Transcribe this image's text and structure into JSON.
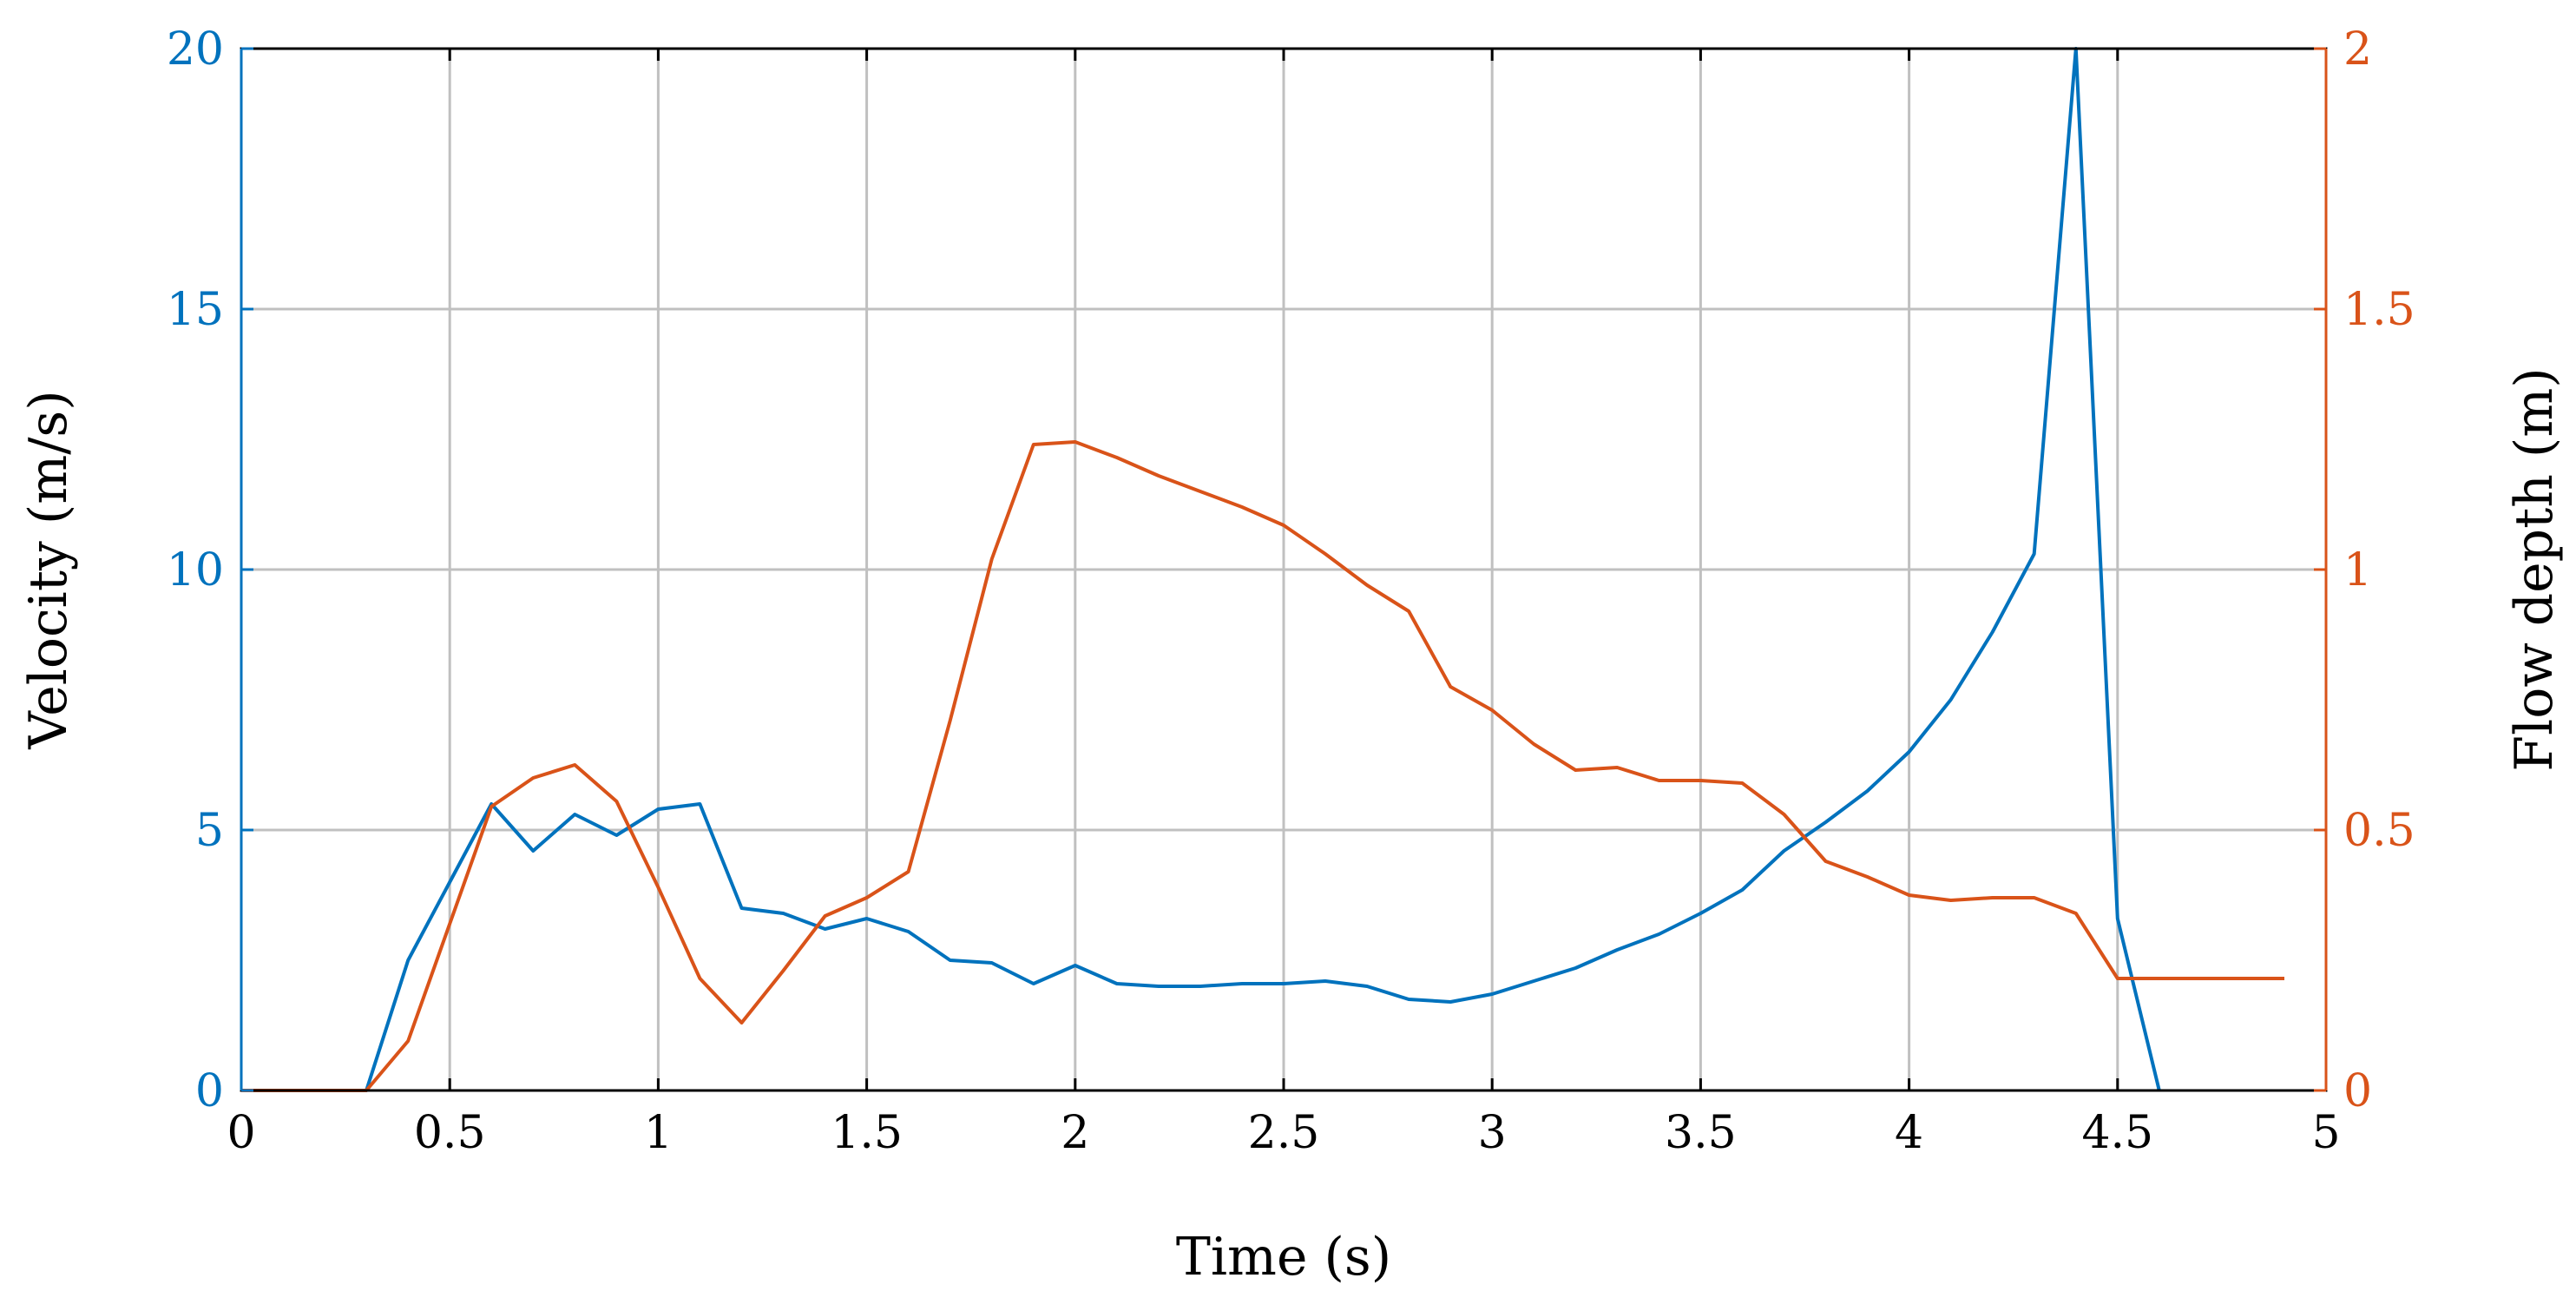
{
  "chart_data": {
    "type": "line",
    "xlabel": "Time (s)",
    "ylabel_left": "Velocity (m/s)",
    "ylabel_right": "Flow depth (m)",
    "xlim": [
      0,
      5
    ],
    "ylim_left": [
      0,
      20
    ],
    "ylim_right": [
      0,
      2
    ],
    "x_ticks": [
      "0",
      "0.5",
      "1",
      "1.5",
      "2",
      "2.5",
      "3",
      "3.5",
      "4",
      "4.5",
      "5"
    ],
    "y_left_ticks": [
      "0",
      "5",
      "10",
      "15",
      "20"
    ],
    "y_right_ticks": [
      "0",
      "0.5",
      "1",
      "1.5",
      "2"
    ],
    "grid": true,
    "colors": {
      "left_axis": "#0072BD",
      "right_axis": "#D95319",
      "axes": "#000000",
      "grid": "#c0c0c0"
    },
    "series": [
      {
        "axis": "left",
        "color": "#0072BD",
        "x": [
          0,
          0.1,
          0.2,
          0.3,
          0.4,
          0.5,
          0.6,
          0.7,
          0.8,
          0.9,
          1.0,
          1.1,
          1.2,
          1.3,
          1.4,
          1.5,
          1.6,
          1.7,
          1.8,
          1.9,
          2.0,
          2.1,
          2.2,
          2.3,
          2.4,
          2.5,
          2.6,
          2.7,
          2.8,
          2.9,
          3.0,
          3.1,
          3.2,
          3.3,
          3.4,
          3.5,
          3.6,
          3.7,
          3.8,
          3.9,
          4.0,
          4.1,
          4.2,
          4.3,
          4.4,
          4.5,
          4.6
        ],
        "values": [
          0,
          0,
          0,
          0,
          2.5,
          4.0,
          5.5,
          4.6,
          5.3,
          4.9,
          5.4,
          5.5,
          3.5,
          3.4,
          3.1,
          3.3,
          3.05,
          2.5,
          2.45,
          2.05,
          2.4,
          2.05,
          2.0,
          2.0,
          2.05,
          2.05,
          2.1,
          2.0,
          1.75,
          1.7,
          1.85,
          2.1,
          2.35,
          2.7,
          3.0,
          3.4,
          3.85,
          4.6,
          5.15,
          5.75,
          6.5,
          7.5,
          8.8,
          10.3,
          20.0,
          3.3,
          0
        ]
      },
      {
        "axis": "right",
        "color": "#D95319",
        "x": [
          0,
          0.1,
          0.2,
          0.3,
          0.4,
          0.5,
          0.6,
          0.7,
          0.8,
          0.9,
          1.0,
          1.1,
          1.2,
          1.3,
          1.4,
          1.5,
          1.6,
          1.7,
          1.8,
          1.9,
          2.0,
          2.1,
          2.2,
          2.3,
          2.4,
          2.5,
          2.6,
          2.7,
          2.8,
          2.9,
          3.0,
          3.1,
          3.2,
          3.3,
          3.4,
          3.5,
          3.6,
          3.7,
          3.8,
          3.9,
          4.0,
          4.1,
          4.2,
          4.3,
          4.4,
          4.5,
          4.6,
          4.7,
          4.8,
          4.9
        ],
        "values": [
          0,
          0,
          0,
          0,
          0.095,
          0.32,
          0.545,
          0.6,
          0.625,
          0.555,
          0.39,
          0.215,
          0.13,
          0.23,
          0.335,
          0.37,
          0.42,
          0.71,
          1.02,
          1.24,
          1.245,
          1.215,
          1.18,
          1.15,
          1.12,
          1.085,
          1.03,
          0.97,
          0.92,
          0.775,
          0.73,
          0.665,
          0.615,
          0.62,
          0.595,
          0.595,
          0.59,
          0.53,
          0.44,
          0.41,
          0.375,
          0.365,
          0.37,
          0.37,
          0.34,
          0.215,
          0.215,
          0.215,
          0.215,
          0.215
        ]
      }
    ]
  }
}
